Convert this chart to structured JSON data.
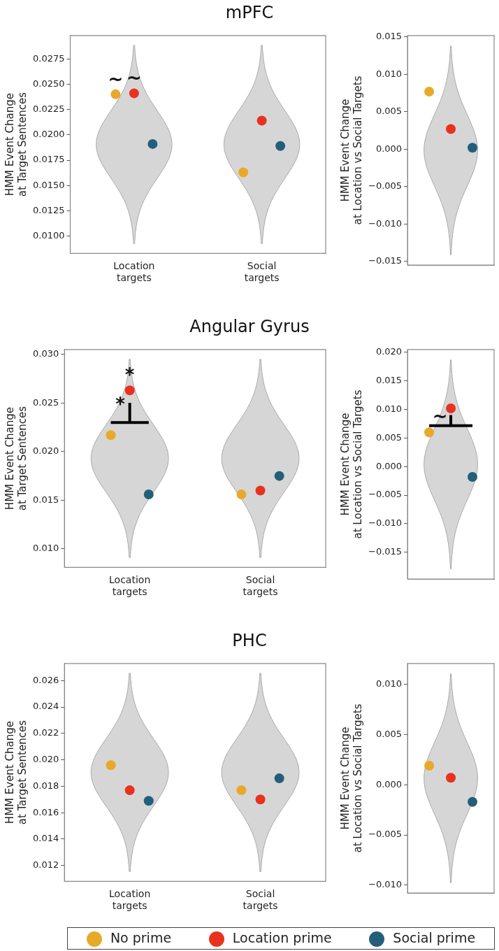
{
  "chart_data": [
    {
      "type": "scatter",
      "title": "mPFC",
      "ylabel": "HMM Event Change\nat Target Sentences",
      "categories": [
        "Location\ntargets",
        "Social\ntargets"
      ],
      "marker": "circle",
      "grid": false,
      "ylim": [
        0.0083,
        0.0298
      ],
      "yticks": [
        {
          "value": 0.01,
          "label": "0.0100"
        },
        {
          "value": 0.0125,
          "label": "0.0125"
        },
        {
          "value": 0.015,
          "label": "0.0150"
        },
        {
          "value": 0.0175,
          "label": "0.0175"
        },
        {
          "value": 0.02,
          "label": "0.0200"
        },
        {
          "value": 0.0225,
          "label": "0.0225"
        },
        {
          "value": 0.025,
          "label": "0.0250"
        },
        {
          "value": 0.0275,
          "label": "0.0275"
        }
      ],
      "series": [
        {
          "color": "#e8a929",
          "values": [
            0.024,
            0.0163
          ]
        },
        {
          "color": "#e8321e",
          "values": [
            0.0241,
            0.0214
          ]
        },
        {
          "color": "#235f7a",
          "values": [
            0.0191,
            0.0189
          ]
        }
      ],
      "annotations": [
        "~",
        "~"
      ]
    },
    {
      "type": "scatter",
      "ylabel": "HMM Event Change\nat Location vs Social Targets",
      "categories": [
        null
      ],
      "marker": "circle",
      "grid": false,
      "ylim": [
        -0.0155,
        0.0152
      ],
      "yticks": [
        {
          "value": -0.015,
          "label": "−0.015"
        },
        {
          "value": -0.01,
          "label": "−0.010"
        },
        {
          "value": -0.005,
          "label": "−0.005"
        },
        {
          "value": 0,
          "label": "0.000"
        },
        {
          "value": 0.005,
          "label": "0.005"
        },
        {
          "value": 0.01,
          "label": "0.010"
        },
        {
          "value": 0.015,
          "label": "0.015"
        }
      ],
      "series": [
        {
          "color": "#e8a929",
          "values": [
            0.0077
          ]
        },
        {
          "color": "#e8321e",
          "values": [
            0.0027
          ]
        },
        {
          "color": "#235f7a",
          "values": [
            0.0002
          ]
        }
      ]
    },
    {
      "type": "scatter",
      "title": "Angular Gyrus",
      "ylabel": "HMM Event Change\nat Target Sentences",
      "categories": [
        "Location\ntargets",
        "Social\ntargets"
      ],
      "marker": "circle",
      "grid": false,
      "ylim": [
        0.0081,
        0.0305
      ],
      "yticks": [
        {
          "value": 0.01,
          "label": "0.010"
        },
        {
          "value": 0.015,
          "label": "0.015"
        },
        {
          "value": 0.02,
          "label": "0.020"
        },
        {
          "value": 0.025,
          "label": "0.025"
        },
        {
          "value": 0.03,
          "label": "0.030"
        }
      ],
      "series": [
        {
          "color": "#e8a929",
          "values": [
            0.0217,
            0.0156
          ]
        },
        {
          "color": "#e8321e",
          "values": [
            0.0263,
            0.016
          ]
        },
        {
          "color": "#235f7a",
          "values": [
            0.0156,
            0.0175
          ]
        }
      ],
      "annotations": [
        "*",
        "*"
      ]
    },
    {
      "type": "scatter",
      "ylabel": "HMM Event Change\nat Location vs Social Targets",
      "categories": [
        null
      ],
      "marker": "circle",
      "grid": false,
      "ylim": [
        -0.0197,
        0.0205
      ],
      "yticks": [
        {
          "value": -0.015,
          "label": "−0.015"
        },
        {
          "value": -0.01,
          "label": "−0.010"
        },
        {
          "value": -0.005,
          "label": "−0.005"
        },
        {
          "value": 0,
          "label": "0.000"
        },
        {
          "value": 0.005,
          "label": "0.005"
        },
        {
          "value": 0.01,
          "label": "0.010"
        },
        {
          "value": 0.015,
          "label": "0.015"
        },
        {
          "value": 0.02,
          "label": "0.020"
        }
      ],
      "series": [
        {
          "color": "#e8a929",
          "values": [
            0.006
          ]
        },
        {
          "color": "#e8321e",
          "values": [
            0.0102
          ]
        },
        {
          "color": "#235f7a",
          "values": [
            -0.0018
          ]
        }
      ],
      "annotations": [
        "~"
      ]
    },
    {
      "type": "scatter",
      "title": "PHC",
      "ylabel": "HMM Event Change\nat Target Sentences",
      "categories": [
        "Location\ntargets",
        "Social\ntargets"
      ],
      "marker": "circle",
      "grid": false,
      "legend": "bottom",
      "ylim": [
        0.0108,
        0.0273
      ],
      "yticks": [
        {
          "value": 0.012,
          "label": "0.012"
        },
        {
          "value": 0.014,
          "label": "0.014"
        },
        {
          "value": 0.016,
          "label": "0.016"
        },
        {
          "value": 0.018,
          "label": "0.018"
        },
        {
          "value": 0.02,
          "label": "0.020"
        },
        {
          "value": 0.022,
          "label": "0.022"
        },
        {
          "value": 0.024,
          "label": "0.024"
        },
        {
          "value": 0.026,
          "label": "0.026"
        }
      ],
      "series": [
        {
          "name": "No prime",
          "color": "#e8a929",
          "values": [
            0.0196,
            0.0177
          ]
        },
        {
          "name": "Location prime",
          "color": "#e8321e",
          "values": [
            0.0177,
            0.017
          ]
        },
        {
          "name": "Social prime",
          "color": "#235f7a",
          "values": [
            0.0169,
            0.0186
          ]
        }
      ]
    },
    {
      "type": "scatter",
      "ylabel": "HMM Event Change\nat Location vs Social Targets",
      "categories": [
        null
      ],
      "marker": "circle",
      "grid": false,
      "ylim": [
        -0.0108,
        0.0121
      ],
      "yticks": [
        {
          "value": -0.01,
          "label": "−0.010"
        },
        {
          "value": -0.005,
          "label": "−0.005"
        },
        {
          "value": 0,
          "label": "0.000"
        },
        {
          "value": 0.005,
          "label": "0.005"
        },
        {
          "value": 0.01,
          "label": "0.010"
        }
      ],
      "series": [
        {
          "color": "#e8a929",
          "values": [
            0.0019
          ]
        },
        {
          "color": "#e8321e",
          "values": [
            0.0007
          ]
        },
        {
          "color": "#235f7a",
          "values": [
            -0.0017
          ]
        }
      ]
    }
  ]
}
